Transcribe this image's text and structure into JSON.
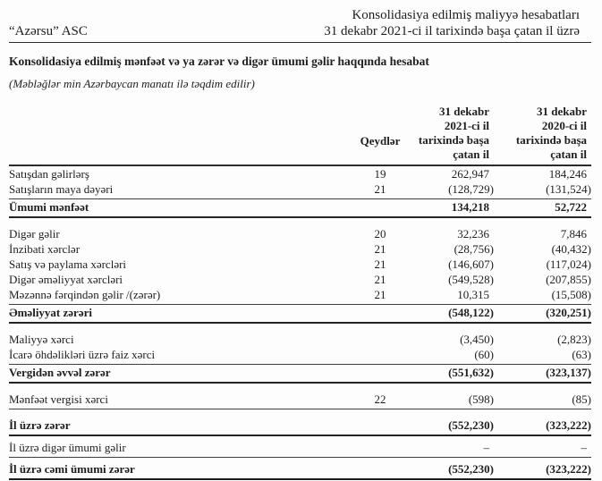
{
  "colors": {
    "ink": "#1e1e1e",
    "rule": "#2b2b2b",
    "paper": "#fdfdfd"
  },
  "header": {
    "company": "“Azərsu” ASC",
    "right_line1": "Konsolidasiya edilmiş maliyyə hesabatları",
    "right_line2": "31 dekabr 2021-ci il tarixində başa çatan il üzrə"
  },
  "title": "Konsolidasiya edilmiş mənfəət və ya zərər və digər ümumi gəlir haqqında hesabat",
  "units_note": "(Məbləğlər min Azərbaycan manatı ilə təqdim edilir)",
  "table": {
    "columns": {
      "notes": "Qeydlər",
      "col2021": "31 dekabr\n2021-ci il\ntarixində başa\nçatan il",
      "col2020": "31 dekabr\n2020-ci il\ntarixində başa\nçatan il"
    },
    "rows": [
      {
        "label": "Satışdan gəlirlərş",
        "note": "19",
        "v2021": "262,947",
        "v2020": "184,246",
        "bold": false,
        "rule": "",
        "gap_before": false,
        "pad_top": false
      },
      {
        "label": "Satışların maya dəyəri",
        "note": "21",
        "v2021": "(128,729)",
        "v2020": "(131,524)",
        "bold": false,
        "rule": "single",
        "gap_before": false,
        "pad_top": false
      },
      {
        "label": "Ümumi mənfəət",
        "note": "",
        "v2021": "134,218",
        "v2020": "52,722",
        "bold": true,
        "rule": "total",
        "gap_before": false,
        "pad_top": false
      },
      {
        "label": "Digər gəlir",
        "note": "20",
        "v2021": "32,236",
        "v2020": "7,846",
        "bold": false,
        "rule": "",
        "gap_before": true,
        "pad_top": false
      },
      {
        "label": "İnzibati xərclər",
        "note": "21",
        "v2021": "(28,756)",
        "v2020": "(40,432)",
        "bold": false,
        "rule": "",
        "gap_before": false,
        "pad_top": false
      },
      {
        "label": "Satış və paylama xərcləri",
        "note": "21",
        "v2021": "(146,607)",
        "v2020": "(117,024)",
        "bold": false,
        "rule": "",
        "gap_before": false,
        "pad_top": false
      },
      {
        "label": "Digər əməliyyat xərcləri",
        "note": "21",
        "v2021": "(549,528)",
        "v2020": "(207,855)",
        "bold": false,
        "rule": "",
        "gap_before": false,
        "pad_top": false
      },
      {
        "label": "Məzənnə fərqindən gəlir /(zərər)",
        "note": "21",
        "v2021": "10,315",
        "v2020": "(15,508)",
        "bold": false,
        "rule": "single",
        "gap_before": false,
        "pad_top": false
      },
      {
        "label": "Əməliyyat zərəri",
        "note": "",
        "v2021": "(548,122)",
        "v2020": "(320,251)",
        "bold": true,
        "rule": "total",
        "gap_before": false,
        "pad_top": false
      },
      {
        "label": "Maliyyə xərci",
        "note": "",
        "v2021": "(3,450)",
        "v2020": "(2,823)",
        "bold": false,
        "rule": "",
        "gap_before": true,
        "pad_top": false
      },
      {
        "label": "İcarə öhdəlikləri üzrə faiz xərci",
        "note": "",
        "v2021": "(60)",
        "v2020": "(63)",
        "bold": false,
        "rule": "single",
        "gap_before": false,
        "pad_top": false
      },
      {
        "label": "Vergidən əvvəl zərər",
        "note": "",
        "v2021": "(551,632)",
        "v2020": "(323,137)",
        "bold": true,
        "rule": "total",
        "gap_before": false,
        "pad_top": false
      },
      {
        "label": "Mənfəət vergisi xərci",
        "note": "22",
        "v2021": "(598)",
        "v2020": "(85)",
        "bold": false,
        "rule": "single",
        "gap_before": true,
        "pad_top": false
      },
      {
        "label": "İl üzrə zərər",
        "note": "",
        "v2021": "(552,230)",
        "v2020": "(323,222)",
        "bold": true,
        "rule": "total",
        "gap_before": true,
        "pad_top": false
      },
      {
        "label": "İl üzrə digər ümumi gəlir",
        "note": "",
        "v2021": "–",
        "v2020": "–",
        "bold": false,
        "rule": "single",
        "gap_before": false,
        "pad_top": true
      },
      {
        "label": "İl üzrə cəmi ümumi zərər",
        "note": "",
        "v2021": "(552,230)",
        "v2020": "(323,222)",
        "bold": true,
        "rule": "final",
        "gap_before": false,
        "pad_top": true
      }
    ]
  }
}
